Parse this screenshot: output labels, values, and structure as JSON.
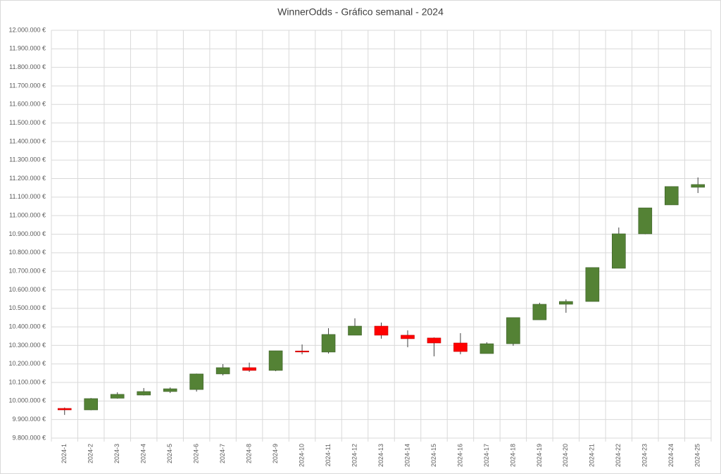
{
  "chart_data": {
    "type": "candlestick",
    "title": "WinnerOdds - Gráfico semanal - 2024",
    "categories": [
      "2024-1",
      "2024-2",
      "2024-3",
      "2024-4",
      "2024-5",
      "2024-6",
      "2024-7",
      "2024-8",
      "2024-9",
      "2024-10",
      "2024-11",
      "2024-12",
      "2024-13",
      "2024-14",
      "2024-15",
      "2024-16",
      "2024-17",
      "2024-18",
      "2024-19",
      "2024-20",
      "2024-21",
      "2024-22",
      "2024-23",
      "2024-24",
      "2024-25"
    ],
    "open": [
      9960000,
      9952000,
      10015000,
      10032000,
      10051000,
      10062000,
      10146000,
      10180000,
      10165000,
      10270000,
      10264000,
      10355000,
      10404000,
      10355000,
      10340000,
      10313000,
      10256000,
      10309000,
      10438000,
      10522000,
      10537000,
      10716000,
      10902000,
      11058000,
      11153000
    ],
    "high": [
      9965000,
      10016000,
      10047000,
      10070000,
      10073000,
      10148000,
      10199000,
      10207000,
      10271000,
      10305000,
      10393000,
      10446000,
      10423000,
      10381000,
      10343000,
      10366000,
      10317000,
      10450000,
      10530000,
      10548000,
      10720000,
      10936000,
      11042000,
      11157000,
      11206000
    ],
    "low": [
      9925000,
      9950000,
      10013000,
      10030000,
      10043000,
      10051000,
      10138000,
      10157000,
      10161000,
      10252000,
      10256000,
      10355000,
      10336000,
      10290000,
      10241000,
      10252000,
      10256000,
      10298000,
      10438000,
      10476000,
      10537000,
      10716000,
      10900000,
      11058000,
      11122000
    ],
    "close": [
      9952000,
      10013000,
      10036000,
      10051000,
      10066000,
      10146000,
      10180000,
      10165000,
      10271000,
      10266000,
      10359000,
      10404000,
      10355000,
      10336000,
      10313000,
      10267000,
      10309000,
      10450000,
      10522000,
      10537000,
      10720000,
      10902000,
      11042000,
      11157000,
      11168000
    ],
    "up_color": "#548235",
    "down_color": "#ff0000",
    "ylim": [
      9800000,
      12000000
    ],
    "yticks": [
      {
        "value": 9800000,
        "label": "9.800.000 €"
      },
      {
        "value": 9900000,
        "label": "9.900.000 €"
      },
      {
        "value": 10000000,
        "label": "10.000.000 €"
      },
      {
        "value": 10100000,
        "label": "10.100.000 €"
      },
      {
        "value": 10200000,
        "label": "10.200.000 €"
      },
      {
        "value": 10300000,
        "label": "10.300.000 €"
      },
      {
        "value": 10400000,
        "label": "10.400.000 €"
      },
      {
        "value": 10500000,
        "label": "10.500.000 €"
      },
      {
        "value": 10600000,
        "label": "10.600.000 €"
      },
      {
        "value": 10700000,
        "label": "10.700.000 €"
      },
      {
        "value": 10800000,
        "label": "10.800.000 €"
      },
      {
        "value": 10900000,
        "label": "10.900.000 €"
      },
      {
        "value": 11000000,
        "label": "11.000.000 €"
      },
      {
        "value": 11100000,
        "label": "11.100.000 €"
      },
      {
        "value": 11200000,
        "label": "11.200.000 €"
      },
      {
        "value": 11300000,
        "label": "11.300.000 €"
      },
      {
        "value": 11400000,
        "label": "11.400.000 €"
      },
      {
        "value": 11500000,
        "label": "11.500.000 €"
      },
      {
        "value": 11600000,
        "label": "11.600.000 €"
      },
      {
        "value": 11700000,
        "label": "11.700.000 €"
      },
      {
        "value": 11800000,
        "label": "11.800.000 €"
      },
      {
        "value": 11900000,
        "label": "11.900.000 €"
      },
      {
        "value": 12000000,
        "label": "12.000.000 €"
      }
    ],
    "grid": true
  }
}
